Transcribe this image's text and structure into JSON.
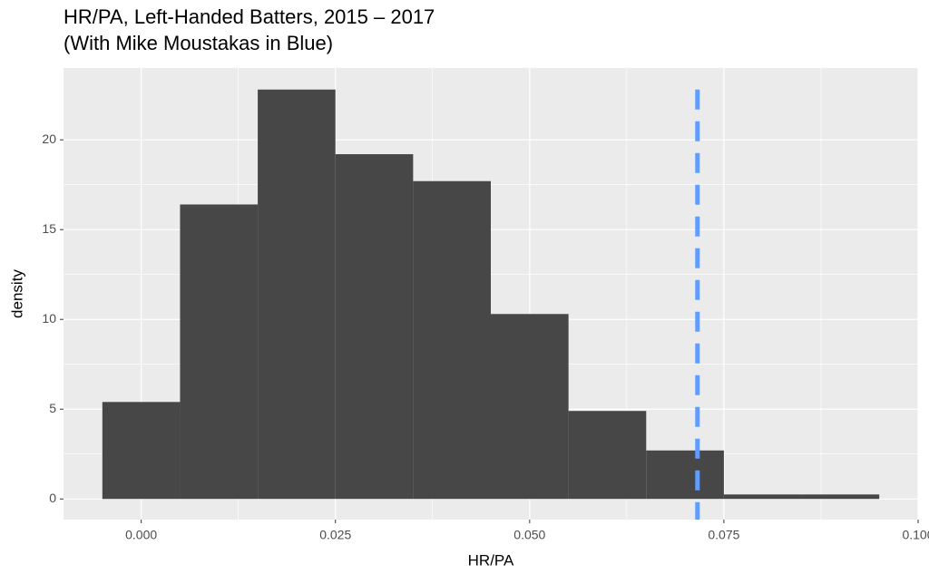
{
  "chart_data": {
    "type": "histogram",
    "title": "HR/PA, Left-Handed Batters, 2015 – 2017",
    "subtitle": "(With Mike Moustakas in Blue)",
    "x_label": "HR/PA",
    "y_label": "density",
    "bins": [
      -0.005,
      0.005,
      0.015,
      0.025,
      0.035,
      0.045,
      0.055,
      0.065,
      0.075,
      0.085,
      0.095
    ],
    "values": [
      5.4,
      16.4,
      22.8,
      19.2,
      17.7,
      10.3,
      4.9,
      2.7,
      0.25,
      0.25
    ],
    "color": "#474747",
    "xlim": [
      -0.01,
      0.1
    ],
    "xticks": [
      {
        "value": 0,
        "label": "0.000"
      },
      {
        "value": 0.025,
        "label": "0.025"
      },
      {
        "value": 0.05,
        "label": "0.050"
      },
      {
        "value": 0.075,
        "label": "0.075"
      },
      {
        "value": 0.1,
        "label": "0.100"
      }
    ],
    "ylim": [
      -1.15,
      24.0
    ],
    "yticks": [
      0,
      5,
      10,
      15,
      20
    ],
    "grid": true,
    "vline": {
      "value": 0.0716,
      "color": "#619CFF"
    }
  }
}
